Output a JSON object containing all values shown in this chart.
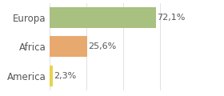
{
  "categories": [
    "America",
    "Africa",
    "Europa"
  ],
  "values": [
    2.3,
    25.6,
    72.1
  ],
  "labels": [
    "2,3%",
    "25,6%",
    "72,1%"
  ],
  "bar_colors": [
    "#e8d44d",
    "#e8a96e",
    "#a8c080"
  ],
  "background_color": "#ffffff",
  "xlim": [
    0,
    100
  ],
  "bar_height": 0.72,
  "label_fontsize": 8,
  "tick_fontsize": 8.5,
  "grid_color": "#dddddd",
  "text_color": "#555555"
}
